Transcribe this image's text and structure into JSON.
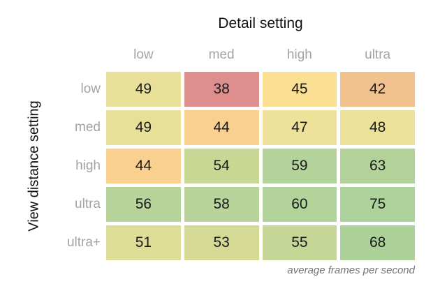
{
  "chart_data": {
    "type": "heatmap",
    "title": "Detail setting",
    "ylabel": "View distance setting",
    "footnote": "average frames per second",
    "columns": [
      "low",
      "med",
      "high",
      "ultra"
    ],
    "rows": [
      "low",
      "med",
      "high",
      "ultra",
      "ultra+"
    ],
    "values": [
      [
        49,
        38,
        45,
        42
      ],
      [
        49,
        44,
        47,
        48
      ],
      [
        44,
        54,
        59,
        63
      ],
      [
        56,
        58,
        60,
        75
      ],
      [
        51,
        53,
        55,
        68
      ]
    ],
    "cell_colors": [
      [
        "#e8e099",
        "#de8f8d",
        "#fbe093",
        "#f2c28e"
      ],
      [
        "#e8e099",
        "#f9d08e",
        "#eee199",
        "#ebe199"
      ],
      [
        "#f9d08e",
        "#c9d795",
        "#b4d39a",
        "#b2d29a"
      ],
      [
        "#b7d49b",
        "#b9d49a",
        "#b2d39a",
        "#aed29b"
      ],
      [
        "#dedd97",
        "#d4da96",
        "#c5d696",
        "#abd199"
      ]
    ],
    "value_range": [
      38,
      75
    ],
    "colors": {
      "min_value": "#de8f8d",
      "mid_value": "#fbe093",
      "max_value": "#abd199",
      "axis_label_gray": "#a3a3a3",
      "footnote_gray": "#757575",
      "cell_text": "#1a1a1a"
    },
    "legend_position": "none",
    "grid": false
  }
}
